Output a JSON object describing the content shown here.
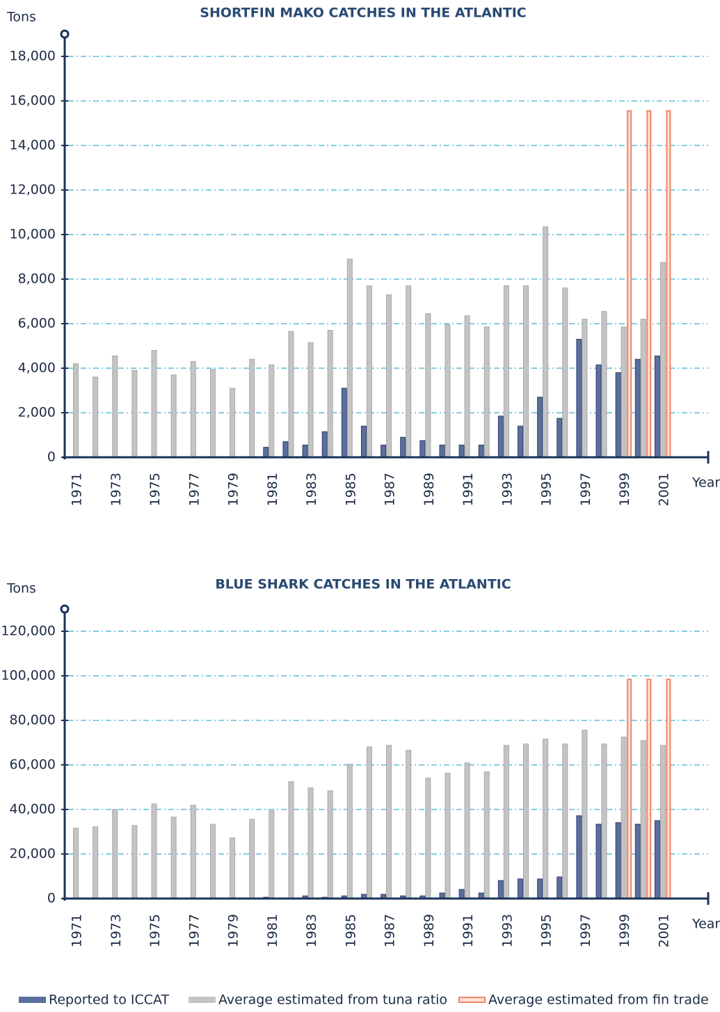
{
  "chart_data": [
    {
      "type": "bar",
      "title": "SHORTFIN MAKO CATCHES IN THE ATLANTIC",
      "y_label": "Tons",
      "x_label": "Year",
      "categories": [
        "1971",
        null,
        "1973",
        null,
        "1975",
        null,
        "1977",
        null,
        "1979",
        null,
        "1981",
        null,
        "1983",
        null,
        "1985",
        null,
        "1987",
        null,
        "1989",
        null,
        "1991",
        null,
        "1993",
        null,
        "1995",
        null,
        "1997",
        null,
        "1999",
        null,
        "2001"
      ],
      "series": [
        {
          "color": "#5b6f9e",
          "values": [
            null,
            null,
            null,
            null,
            null,
            null,
            null,
            null,
            null,
            null,
            450,
            700,
            550,
            1150,
            3100,
            1400,
            550,
            900,
            750,
            550,
            550,
            550,
            1850,
            1400,
            2700,
            1750,
            5300,
            4150,
            3800,
            4400,
            4550
          ]
        },
        {
          "color": "#c4c4c4",
          "values": [
            4200,
            3600,
            4550,
            3900,
            4800,
            3700,
            4300,
            3950,
            3100,
            4400,
            4150,
            5650,
            5150,
            5700,
            8900,
            7700,
            7300,
            7700,
            6450,
            5950,
            6350,
            5850,
            7700,
            7700,
            10350,
            7600,
            6200,
            6550,
            5850,
            6200,
            8750
          ]
        },
        {
          "color": "#f0866a",
          "values": [
            null,
            null,
            null,
            null,
            null,
            null,
            null,
            null,
            null,
            null,
            null,
            null,
            null,
            null,
            null,
            null,
            null,
            null,
            null,
            null,
            null,
            null,
            null,
            null,
            null,
            null,
            null,
            null,
            15550,
            15550,
            15550
          ]
        }
      ],
      "ylim": [
        0,
        18000
      ],
      "yticks": [
        0,
        {
          "value": 2000,
          "label": "2,000"
        },
        {
          "value": 4000,
          "label": "4,000"
        },
        {
          "value": 6000,
          "label": "6,000"
        },
        {
          "value": 8000,
          "label": "8,000"
        },
        {
          "value": 10000,
          "label": "10,000"
        },
        {
          "value": 12000,
          "label": "12,000"
        },
        {
          "value": 14000,
          "label": "14,000"
        },
        {
          "value": 16000,
          "label": "16,000"
        },
        {
          "value": 18000,
          "label": "18,000"
        }
      ],
      "grid": true
    },
    {
      "type": "bar",
      "title": "BLUE SHARK CATCHES IN THE ATLANTIC",
      "y_label": "Tons",
      "x_label": "Year",
      "categories": [
        "1971",
        null,
        "1973",
        null,
        "1975",
        null,
        "1977",
        null,
        "1979",
        null,
        "1981",
        null,
        "1983",
        null,
        "1985",
        null,
        "1987",
        null,
        "1989",
        null,
        "1991",
        null,
        "1993",
        null,
        "1995",
        null,
        "1997",
        null,
        "1999",
        null,
        "2001"
      ],
      "series": [
        {
          "color": "#5b6f9e",
          "values": [
            null,
            null,
            null,
            null,
            null,
            null,
            null,
            null,
            null,
            null,
            600,
            null,
            1200,
            600,
            1200,
            1900,
            1900,
            1200,
            1200,
            2500,
            4100,
            2500,
            8100,
            8800,
            8800,
            9700,
            37200,
            33400,
            34100,
            33400,
            35000
          ]
        },
        {
          "color": "#c4c4c4",
          "values": [
            31600,
            32200,
            40000,
            32800,
            42500,
            36600,
            41900,
            33400,
            27200,
            35600,
            39400,
            52500,
            49700,
            48400,
            60300,
            68100,
            68800,
            66600,
            54100,
            56300,
            60900,
            56900,
            68800,
            69400,
            71600,
            69400,
            75600,
            69400,
            72500,
            70900,
            68800
          ]
        },
        {
          "color": "#f0866a",
          "values": [
            null,
            null,
            null,
            null,
            null,
            null,
            null,
            null,
            null,
            null,
            null,
            null,
            null,
            null,
            null,
            null,
            null,
            null,
            null,
            null,
            null,
            null,
            null,
            null,
            null,
            null,
            null,
            null,
            98400,
            98400,
            98400
          ]
        }
      ],
      "ylim": [
        0,
        120000
      ],
      "yticks": [
        0,
        {
          "value": 20000,
          "label": "20,000"
        },
        {
          "value": 40000,
          "label": "40,000"
        },
        {
          "value": 60000,
          "label": "60,000"
        },
        {
          "value": 80000,
          "label": "80,000"
        },
        {
          "value": 100000,
          "label": "100,000"
        },
        {
          "value": 120000,
          "label": "120,000"
        }
      ],
      "grid": true
    }
  ],
  "legend": [
    {
      "name": "Reported to ICCAT",
      "color": "#5b6f9e"
    },
    {
      "name": "Average estimated from tuna ratio",
      "color": "#c4c4c4"
    },
    {
      "name": "Average estimated from fin trade",
      "color": "#f0866a"
    }
  ]
}
